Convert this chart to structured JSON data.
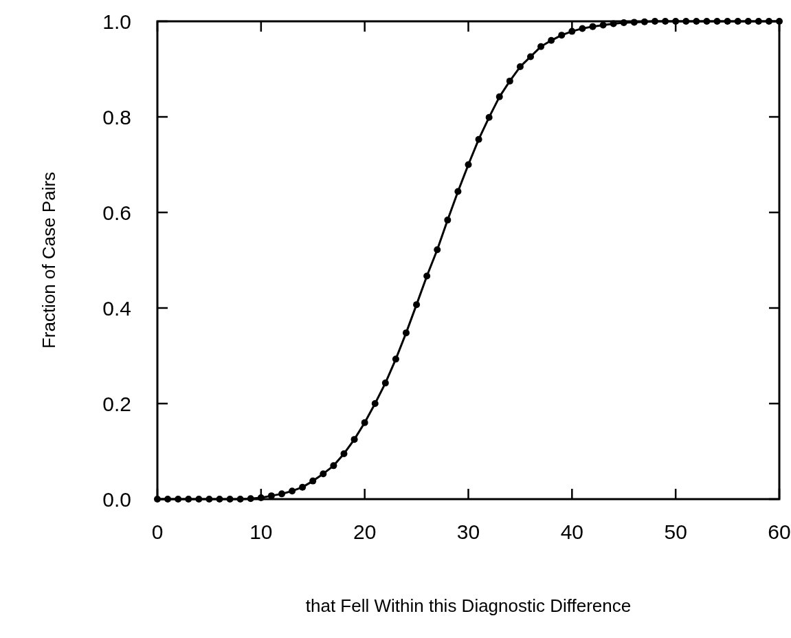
{
  "chart_data": {
    "type": "line",
    "xlabel": "that Fell Within this Diagnostic Difference",
    "ylabel": "Fraction of Case Pairs",
    "x": [
      0,
      1,
      2,
      3,
      4,
      5,
      6,
      7,
      8,
      9,
      10,
      11,
      12,
      13,
      14,
      15,
      16,
      17,
      18,
      19,
      20,
      21,
      22,
      23,
      24,
      25,
      26,
      27,
      28,
      29,
      30,
      31,
      32,
      33,
      34,
      35,
      36,
      37,
      38,
      39,
      40,
      41,
      42,
      43,
      44,
      45,
      46,
      47,
      48,
      49,
      50,
      51,
      52,
      53,
      54,
      55,
      56,
      57,
      58,
      59,
      60
    ],
    "series": [
      {
        "color": "#000000",
        "values": [
          0,
          0,
          0,
          0,
          0,
          0,
          0,
          0,
          0,
          0.001,
          0.003,
          0.007,
          0.011,
          0.017,
          0.025,
          0.038,
          0.053,
          0.07,
          0.095,
          0.125,
          0.16,
          0.2,
          0.243,
          0.293,
          0.348,
          0.407,
          0.467,
          0.522,
          0.584,
          0.644,
          0.7,
          0.753,
          0.799,
          0.842,
          0.875,
          0.905,
          0.926,
          0.947,
          0.96,
          0.971,
          0.979,
          0.985,
          0.989,
          0.992,
          0.995,
          0.997,
          0.998,
          0.999,
          1,
          1,
          1,
          1,
          1,
          1,
          1,
          1,
          1,
          1,
          1,
          1,
          1
        ]
      }
    ],
    "xlim": [
      0,
      60
    ],
    "xticks": [
      0,
      10,
      20,
      30,
      40,
      50,
      60
    ],
    "ylim": [
      0,
      1
    ],
    "yticks": [
      {
        "value": 0,
        "label": "0.0"
      },
      {
        "value": 0.2,
        "label": "0.2"
      },
      {
        "value": 0.4,
        "label": "0.4"
      },
      {
        "value": 0.6,
        "label": "0.6"
      },
      {
        "value": 0.8,
        "label": "0.8"
      },
      {
        "value": 1,
        "label": "1.0"
      }
    ],
    "marker": "circle",
    "line_style": "solid"
  }
}
